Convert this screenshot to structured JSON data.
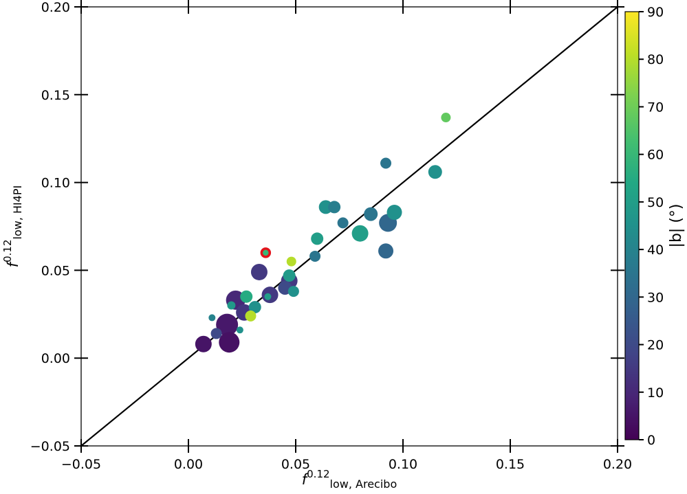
{
  "chart_data": {
    "type": "scatter",
    "xlabel": {
      "base": "f",
      "sup": "0.12",
      "sub": "low, Arecibo"
    },
    "ylabel": {
      "base": "f",
      "sup": "0.12",
      "sub": "low, HI4PI"
    },
    "xlim": [
      -0.05,
      0.2
    ],
    "ylim": [
      -0.05,
      0.2
    ],
    "x_ticks": [
      -0.05,
      0.0,
      0.05,
      0.1,
      0.15,
      0.2
    ],
    "x_tick_labels": [
      "−0.05",
      "0.00",
      "0.05",
      "0.10",
      "0.15",
      "0.20"
    ],
    "y_ticks": [
      -0.05,
      0.0,
      0.05,
      0.1,
      0.15,
      0.2
    ],
    "y_tick_labels": [
      "−0.05",
      "0.00",
      "0.05",
      "0.10",
      "0.15",
      "0.20"
    ],
    "grid": false,
    "reference_line": {
      "type": "y=x"
    },
    "colorbar": {
      "label": "|b| (°)",
      "colormap": "viridis",
      "range": [
        0,
        90
      ],
      "ticks": [
        0,
        10,
        20,
        30,
        40,
        50,
        60,
        70,
        80,
        90
      ],
      "tick_labels": [
        "0",
        "10",
        "20",
        "30",
        "40",
        "50",
        "60",
        "70",
        "80",
        "90"
      ]
    },
    "points": [
      {
        "x": 0.007,
        "y": 0.008,
        "b": 5,
        "s": 12
      },
      {
        "x": 0.019,
        "y": 0.009,
        "b": 4,
        "s": 15
      },
      {
        "x": 0.018,
        "y": 0.019,
        "b": 6,
        "s": 16
      },
      {
        "x": 0.013,
        "y": 0.014,
        "b": 20,
        "s": 8
      },
      {
        "x": 0.011,
        "y": 0.023,
        "b": 40,
        "s": 5
      },
      {
        "x": 0.022,
        "y": 0.033,
        "b": 10,
        "s": 14
      },
      {
        "x": 0.026,
        "y": 0.026,
        "b": 14,
        "s": 12
      },
      {
        "x": 0.027,
        "y": 0.035,
        "b": 55,
        "s": 9
      },
      {
        "x": 0.029,
        "y": 0.024,
        "b": 80,
        "s": 8
      },
      {
        "x": 0.024,
        "y": 0.016,
        "b": 45,
        "s": 5
      },
      {
        "x": 0.02,
        "y": 0.03,
        "b": 48,
        "s": 6
      },
      {
        "x": 0.031,
        "y": 0.029,
        "b": 45,
        "s": 9
      },
      {
        "x": 0.033,
        "y": 0.049,
        "b": 15,
        "s": 12
      },
      {
        "x": 0.036,
        "y": 0.06,
        "b": 60,
        "s": 6,
        "highlight": "#e3131b"
      },
      {
        "x": 0.038,
        "y": 0.036,
        "b": 15,
        "s": 12
      },
      {
        "x": 0.037,
        "y": 0.035,
        "b": 50,
        "s": 5
      },
      {
        "x": 0.045,
        "y": 0.04,
        "b": 20,
        "s": 10
      },
      {
        "x": 0.047,
        "y": 0.044,
        "b": 15,
        "s": 12
      },
      {
        "x": 0.047,
        "y": 0.047,
        "b": 48,
        "s": 9
      },
      {
        "x": 0.049,
        "y": 0.038,
        "b": 45,
        "s": 8
      },
      {
        "x": 0.048,
        "y": 0.055,
        "b": 80,
        "s": 7
      },
      {
        "x": 0.059,
        "y": 0.058,
        "b": 35,
        "s": 8
      },
      {
        "x": 0.06,
        "y": 0.068,
        "b": 50,
        "s": 9
      },
      {
        "x": 0.064,
        "y": 0.086,
        "b": 45,
        "s": 10
      },
      {
        "x": 0.068,
        "y": 0.086,
        "b": 38,
        "s": 9
      },
      {
        "x": 0.072,
        "y": 0.077,
        "b": 35,
        "s": 8
      },
      {
        "x": 0.08,
        "y": 0.071,
        "b": 50,
        "s": 12
      },
      {
        "x": 0.085,
        "y": 0.082,
        "b": 35,
        "s": 10
      },
      {
        "x": 0.092,
        "y": 0.061,
        "b": 30,
        "s": 11
      },
      {
        "x": 0.093,
        "y": 0.077,
        "b": 30,
        "s": 13
      },
      {
        "x": 0.096,
        "y": 0.083,
        "b": 45,
        "s": 11
      },
      {
        "x": 0.092,
        "y": 0.111,
        "b": 35,
        "s": 8
      },
      {
        "x": 0.115,
        "y": 0.106,
        "b": 45,
        "s": 10
      },
      {
        "x": 0.12,
        "y": 0.137,
        "b": 68,
        "s": 7
      }
    ]
  }
}
